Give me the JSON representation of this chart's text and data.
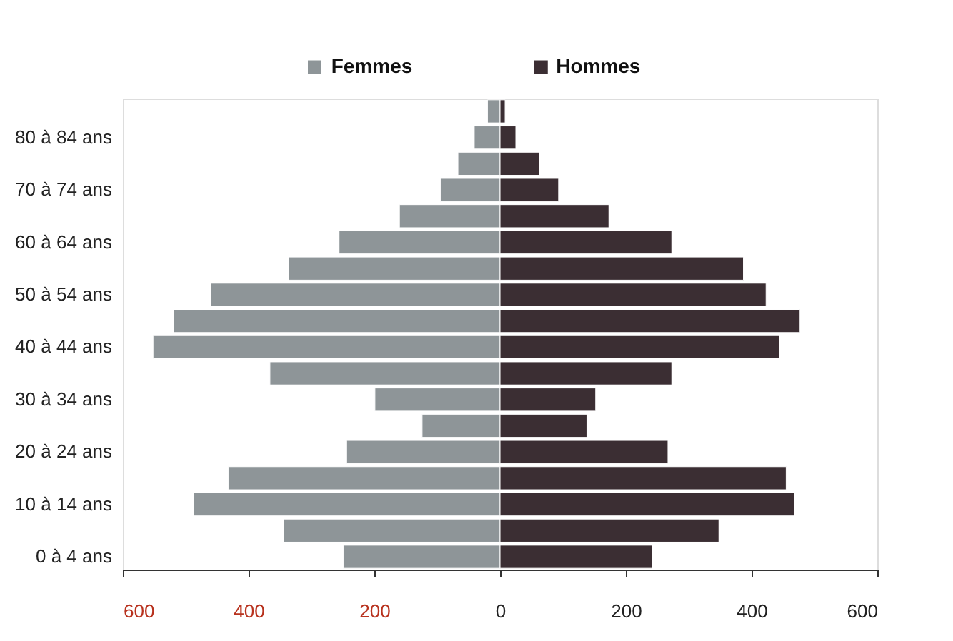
{
  "chart_data": {
    "type": "bar",
    "orientation": "horizontal",
    "stacked": true,
    "categories": [
      null,
      "80 à 84 ans",
      null,
      "70 à 74 ans",
      null,
      "60 à 64 ans",
      null,
      "50 à 54 ans",
      null,
      "40 à 44 ans",
      null,
      "30 à 34 ans",
      null,
      "20 à 24 ans",
      null,
      "10 à 14 ans",
      null,
      "0 à 4 ans"
    ],
    "series": [
      {
        "name": "Femmes",
        "color": "#8e9598",
        "values": [
          -20,
          -41,
          -67,
          -95,
          -160,
          -256,
          -336,
          -460,
          -519,
          -552,
          -366,
          -199,
          -124,
          -244,
          -432,
          -487,
          -344,
          -249
        ]
      },
      {
        "name": "Hommes",
        "color": "#3b2e33",
        "values": [
          8,
          25,
          62,
          93,
          173,
          273,
          387,
          423,
          477,
          444,
          273,
          152,
          138,
          267,
          455,
          468,
          348,
          242
        ]
      }
    ],
    "xlim": [
      -600,
      600
    ],
    "xticks": [
      {
        "value": -600,
        "label": "600"
      },
      {
        "value": -400,
        "label": "400"
      },
      {
        "value": -200,
        "label": "200"
      },
      0,
      200,
      400,
      600
    ],
    "grid": false,
    "legend": "top"
  }
}
